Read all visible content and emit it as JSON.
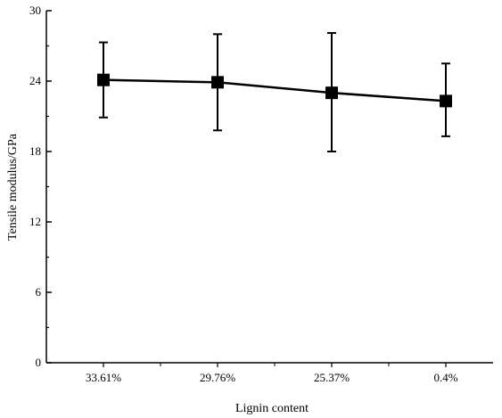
{
  "chart_data": {
    "type": "line",
    "xlabel": "Lignin content",
    "ylabel": "Tensile modulus/GPa",
    "categories": [
      "33.61%",
      "29.76%",
      "25.37%",
      "0.4%"
    ],
    "series": [
      {
        "values": [
          24.1,
          23.9,
          23.0,
          22.3
        ],
        "error_low": [
          20.9,
          19.8,
          18.0,
          19.3
        ],
        "error_high": [
          27.3,
          28.0,
          28.1,
          25.5
        ]
      }
    ],
    "ylim": [
      0,
      30
    ],
    "yticks": [
      0,
      6,
      12,
      18,
      24,
      30
    ],
    "grid": false,
    "marker": "square",
    "line_color": "#000000"
  }
}
